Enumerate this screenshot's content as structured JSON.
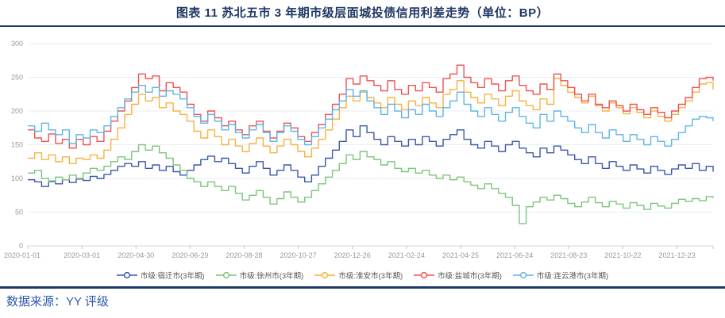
{
  "header": {
    "title": "图表 11 苏北五市 3 年期市级层面城投债信用利差走势（单位：BP）"
  },
  "footer": {
    "source": "数据来源：YY 评级"
  },
  "chart_data": {
    "type": "line",
    "line_style": "step",
    "title": "苏北五市3年期市级层面城投债信用利差走势",
    "unit": "BP",
    "xlabel": "",
    "ylabel": "",
    "ylim": [
      0,
      300
    ],
    "y_ticks": [
      0,
      50,
      100,
      150,
      200,
      250,
      300
    ],
    "grid": true,
    "legend_position": "bottom",
    "x_tick_labels": [
      "2020-01-01",
      "2020-03-01",
      "2020-04-30",
      "2020-06-29",
      "2020-08-28",
      "2020-10-27",
      "2020-12-26",
      "2021-02-24",
      "2021-04-25",
      "2021-06-24",
      "2021-08-23",
      "2021-10-22",
      "2021-12-23"
    ],
    "x_tick_days": [
      0,
      60,
      120,
      180,
      240,
      300,
      360,
      420,
      480,
      540,
      600,
      660,
      720
    ],
    "x_total_days": 760,
    "axis_colors": {
      "grid": "#e9eef5",
      "axis": "#d6d6d6",
      "tick": "#c4c4c4",
      "label": "#999999"
    },
    "series": [
      {
        "name": "市级:宿迁市(3年期)",
        "color": "#3d56a8",
        "values": [
          98,
          95,
          88,
          96,
          92,
          98,
          94,
          99,
          97,
          103,
          100,
          106,
          112,
          118,
          122,
          118,
          125,
          115,
          120,
          112,
          118,
          110,
          105,
          112,
          120,
          128,
          133,
          125,
          130,
          122,
          115,
          108,
          118,
          125,
          115,
          105,
          112,
          120,
          112,
          102,
          95,
          105,
          118,
          130,
          142,
          155,
          172,
          162,
          178,
          168,
          158,
          150,
          162,
          155,
          148,
          158,
          150,
          162,
          155,
          148,
          158,
          165,
          172,
          158,
          150,
          145,
          155,
          148,
          140,
          150,
          155,
          145,
          138,
          132,
          145,
          138,
          148,
          142,
          135,
          128,
          122,
          132,
          122,
          115,
          125,
          118,
          112,
          120,
          114,
          108,
          118,
          112,
          106,
          114,
          120,
          115,
          122,
          112,
          118,
          110
        ]
      },
      {
        "name": "市级:徐州市(3年期)",
        "color": "#7cc47c",
        "values": [
          108,
          112,
          100,
          95,
          102,
          98,
          105,
          100,
          108,
          115,
          112,
          118,
          125,
          132,
          128,
          140,
          150,
          142,
          148,
          138,
          130,
          120,
          112,
          100,
          95,
          88,
          95,
          88,
          82,
          88,
          78,
          68,
          75,
          82,
          72,
          62,
          70,
          80,
          72,
          65,
          72,
          82,
          92,
          102,
          112,
          122,
          135,
          128,
          140,
          132,
          128,
          120,
          125,
          115,
          110,
          115,
          108,
          112,
          105,
          100,
          105,
          98,
          102,
          95,
          90,
          85,
          92,
          85,
          78,
          72,
          60,
          33,
          58,
          65,
          72,
          68,
          75,
          70,
          63,
          58,
          65,
          72,
          64,
          58,
          66,
          62,
          56,
          64,
          60,
          54,
          63,
          59,
          56,
          63,
          69,
          66,
          70,
          67,
          73,
          71
        ]
      },
      {
        "name": "市级:淮安市(3年期)",
        "color": "#f8b13f",
        "values": [
          130,
          138,
          128,
          135,
          125,
          132,
          122,
          130,
          128,
          135,
          130,
          142,
          158,
          175,
          195,
          210,
          225,
          215,
          220,
          205,
          212,
          200,
          195,
          185,
          170,
          160,
          172,
          162,
          150,
          158,
          148,
          140,
          152,
          160,
          148,
          138,
          148,
          158,
          150,
          140,
          132,
          145,
          158,
          172,
          188,
          205,
          222,
          215,
          228,
          220,
          212,
          205,
          220,
          210,
          202,
          215,
          208,
          220,
          212,
          205,
          225,
          232,
          245,
          228,
          220,
          212,
          225,
          218,
          208,
          222,
          230,
          215,
          208,
          202,
          218,
          210,
          248,
          238,
          228,
          220,
          212,
          222,
          208,
          200,
          212,
          205,
          196,
          205,
          198,
          190,
          200,
          192,
          185,
          195,
          205,
          215,
          228,
          240,
          242,
          232
        ]
      },
      {
        "name": "市级:盐城市(3年期)",
        "color": "#ee5250",
        "values": [
          172,
          160,
          155,
          166,
          152,
          158,
          145,
          158,
          150,
          162,
          155,
          170,
          185,
          200,
          215,
          235,
          255,
          248,
          252,
          230,
          242,
          235,
          228,
          210,
          195,
          185,
          200,
          190,
          178,
          185,
          172,
          165,
          178,
          185,
          170,
          160,
          170,
          182,
          175,
          162,
          155,
          168,
          180,
          195,
          210,
          225,
          248,
          240,
          252,
          245,
          238,
          230,
          245,
          232,
          225,
          238,
          230,
          242,
          235,
          228,
          248,
          255,
          268,
          250,
          242,
          235,
          248,
          240,
          230,
          245,
          252,
          238,
          230,
          225,
          240,
          232,
          255,
          245,
          235,
          225,
          215,
          225,
          210,
          205,
          215,
          208,
          200,
          210,
          202,
          195,
          205,
          198,
          190,
          200,
          210,
          220,
          235,
          248,
          250,
          245
        ]
      },
      {
        "name": "市级:连云港市(3年期)",
        "color": "#5fb5e5",
        "values": [
          178,
          170,
          182,
          172,
          165,
          172,
          152,
          165,
          160,
          172,
          168,
          178,
          192,
          205,
          218,
          228,
          238,
          228,
          235,
          222,
          230,
          225,
          218,
          205,
          192,
          182,
          195,
          185,
          172,
          180,
          168,
          160,
          172,
          180,
          168,
          155,
          168,
          178,
          170,
          158,
          150,
          162,
          175,
          188,
          202,
          215,
          232,
          222,
          230,
          215,
          205,
          195,
          210,
          200,
          190,
          202,
          195,
          210,
          200,
          192,
          205,
          215,
          228,
          210,
          200,
          192,
          205,
          195,
          185,
          198,
          205,
          192,
          182,
          175,
          195,
          185,
          200,
          192,
          185,
          175,
          168,
          180,
          168,
          160,
          172,
          165,
          155,
          165,
          158,
          150,
          162,
          155,
          148,
          158,
          168,
          178,
          188,
          192,
          190,
          185
        ]
      }
    ]
  }
}
